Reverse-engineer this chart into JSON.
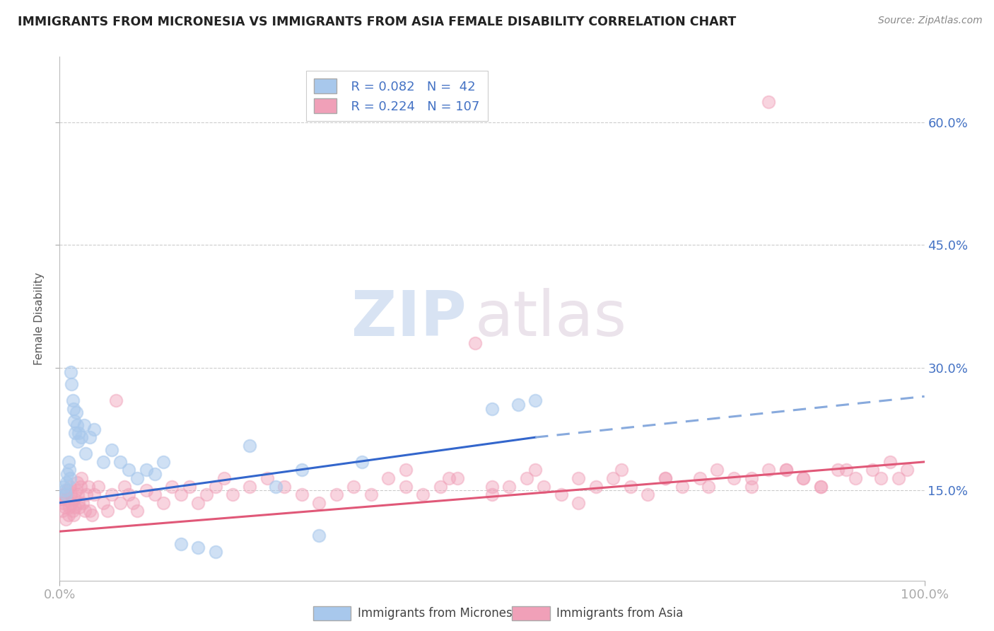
{
  "title": "IMMIGRANTS FROM MICRONESIA VS IMMIGRANTS FROM ASIA FEMALE DISABILITY CORRELATION CHART",
  "source": "Source: ZipAtlas.com",
  "xlabel": "",
  "ylabel": "Female Disability",
  "watermark_zip": "ZIP",
  "watermark_atlas": "atlas",
  "xlim": [
    0,
    100
  ],
  "ylim": [
    4,
    68
  ],
  "yticks": [
    15,
    30,
    45,
    60
  ],
  "ytick_labels": [
    "15.0%",
    "30.0%",
    "45.0%",
    "60.0%"
  ],
  "legend_r1": "R = 0.082",
  "legend_n1": "N =  42",
  "legend_r2": "R = 0.224",
  "legend_n2": "N = 107",
  "legend_label1": "Immigrants from Micronesia",
  "legend_label2": "Immigrants from Asia",
  "color_micronesia": "#A8C8EC",
  "color_asia": "#F0A0B8",
  "color_trend_micronesia": "#3366CC",
  "color_trend_asia": "#E05878",
  "color_dashed": "#88AADD",
  "title_color": "#222222",
  "source_color": "#888888",
  "grid_color": "#CCCCCC",
  "background_color": "#FFFFFF",
  "mic_trend_x0": 0,
  "mic_trend_y0": 13.5,
  "mic_trend_x1": 55,
  "mic_trend_y1": 21.5,
  "mic_dash_x0": 55,
  "mic_dash_y0": 21.5,
  "mic_dash_x1": 100,
  "mic_dash_y1": 26.5,
  "asia_trend_x0": 0,
  "asia_trend_y0": 10.0,
  "asia_trend_x1": 100,
  "asia_trend_y1": 18.5,
  "micronesia_x": [
    0.5,
    0.6,
    0.7,
    0.8,
    0.9,
    1.0,
    1.1,
    1.2,
    1.3,
    1.4,
    1.5,
    1.6,
    1.7,
    1.8,
    1.9,
    2.0,
    2.1,
    2.2,
    2.5,
    2.8,
    3.0,
    3.5,
    4.0,
    5.0,
    6.0,
    7.0,
    8.0,
    9.0,
    10.0,
    11.0,
    12.0,
    14.0,
    16.0,
    18.0,
    22.0,
    25.0,
    28.0,
    30.0,
    35.0,
    50.0,
    53.0,
    55.0
  ],
  "micronesia_y": [
    15.5,
    15.0,
    14.5,
    16.0,
    17.0,
    18.5,
    17.5,
    16.5,
    29.5,
    28.0,
    26.0,
    25.0,
    23.5,
    22.0,
    24.5,
    23.0,
    21.0,
    22.0,
    21.5,
    23.0,
    19.5,
    21.5,
    22.5,
    18.5,
    20.0,
    18.5,
    17.5,
    16.5,
    17.5,
    17.0,
    18.5,
    8.5,
    8.0,
    7.5,
    20.5,
    15.5,
    17.5,
    9.5,
    18.5,
    25.0,
    25.5,
    26.0
  ],
  "asia_x": [
    0.2,
    0.3,
    0.4,
    0.5,
    0.6,
    0.7,
    0.8,
    0.9,
    1.0,
    1.1,
    1.2,
    1.3,
    1.4,
    1.5,
    1.6,
    1.7,
    1.8,
    1.9,
    2.0,
    2.1,
    2.2,
    2.3,
    2.4,
    2.5,
    2.7,
    2.9,
    3.1,
    3.3,
    3.5,
    3.7,
    4.0,
    4.5,
    5.0,
    5.5,
    6.0,
    6.5,
    7.0,
    7.5,
    8.0,
    8.5,
    9.0,
    10.0,
    11.0,
    12.0,
    13.0,
    14.0,
    15.0,
    16.0,
    17.0,
    18.0,
    19.0,
    20.0,
    22.0,
    24.0,
    26.0,
    28.0,
    30.0,
    32.0,
    34.0,
    36.0,
    38.0,
    40.0,
    42.0,
    44.0,
    46.0,
    48.0,
    50.0,
    52.0,
    54.0,
    56.0,
    58.0,
    60.0,
    62.0,
    64.0,
    66.0,
    68.0,
    70.0,
    72.0,
    74.0,
    76.0,
    78.0,
    80.0,
    82.0,
    84.0,
    86.0,
    88.0,
    40.0,
    45.0,
    50.0,
    55.0,
    60.0,
    65.0,
    70.0,
    75.0,
    80.0,
    82.0,
    84.0,
    86.0,
    88.0,
    90.0,
    91.0,
    92.0,
    94.0,
    95.0,
    96.0,
    97.0,
    98.0
  ],
  "asia_y": [
    14.0,
    12.5,
    13.5,
    14.5,
    13.0,
    11.5,
    14.0,
    15.0,
    12.0,
    13.0,
    15.5,
    14.5,
    13.5,
    12.5,
    12.0,
    14.0,
    13.0,
    15.0,
    16.0,
    14.5,
    13.5,
    13.0,
    15.5,
    16.5,
    13.5,
    12.5,
    14.5,
    15.5,
    12.5,
    12.0,
    14.5,
    15.5,
    13.5,
    12.5,
    14.5,
    26.0,
    13.5,
    15.5,
    14.5,
    13.5,
    12.5,
    15.0,
    14.5,
    13.5,
    15.5,
    14.5,
    15.5,
    13.5,
    14.5,
    15.5,
    16.5,
    14.5,
    15.5,
    16.5,
    15.5,
    14.5,
    13.5,
    14.5,
    15.5,
    14.5,
    16.5,
    15.5,
    14.5,
    15.5,
    16.5,
    33.0,
    14.5,
    15.5,
    16.5,
    15.5,
    14.5,
    13.5,
    15.5,
    16.5,
    15.5,
    14.5,
    16.5,
    15.5,
    16.5,
    17.5,
    16.5,
    15.5,
    62.5,
    17.5,
    16.5,
    15.5,
    17.5,
    16.5,
    15.5,
    17.5,
    16.5,
    17.5,
    16.5,
    15.5,
    16.5,
    17.5,
    17.5,
    16.5,
    15.5,
    17.5,
    17.5,
    16.5,
    17.5,
    16.5,
    18.5,
    16.5,
    17.5
  ]
}
